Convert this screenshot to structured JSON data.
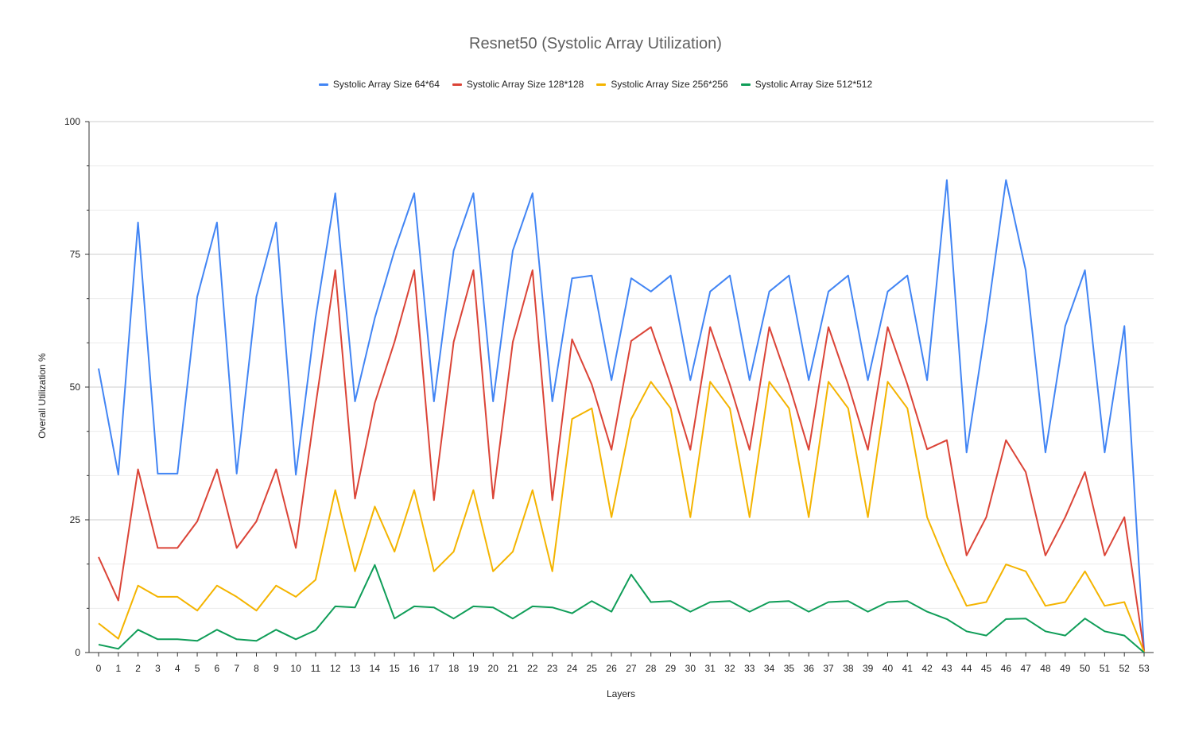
{
  "chart_data": {
    "type": "line",
    "title": "Resnet50 (Systolic Array Utilization)",
    "xlabel": "Layers",
    "ylabel": "Overall Utilization %",
    "ylim": [
      0,
      100
    ],
    "yticks": [
      0,
      25,
      50,
      75,
      100
    ],
    "grid": true,
    "legend_position": "top",
    "x": [
      0,
      1,
      2,
      3,
      4,
      5,
      6,
      7,
      8,
      9,
      10,
      11,
      12,
      13,
      14,
      15,
      16,
      17,
      18,
      19,
      20,
      21,
      22,
      23,
      24,
      25,
      26,
      27,
      28,
      29,
      30,
      31,
      32,
      33,
      34,
      35,
      36,
      37,
      38,
      39,
      40,
      41,
      42,
      43,
      44,
      45,
      46,
      47,
      48,
      49,
      50,
      51,
      52,
      53
    ],
    "series": [
      {
        "name": "Systolic Array Size 64*64",
        "color": "#4285f4",
        "values": [
          53.5,
          33.5,
          81,
          33.7,
          33.7,
          67,
          81,
          33.7,
          67,
          81,
          33.5,
          63,
          86.5,
          47.3,
          63,
          75.7,
          86.5,
          47.3,
          75.7,
          86.5,
          47.3,
          75.7,
          86.5,
          47.3,
          70.5,
          71,
          51.3,
          70.5,
          68,
          71,
          51.3,
          68,
          71,
          51.3,
          68,
          71,
          51.3,
          68,
          71,
          51.3,
          68,
          71,
          51.3,
          89,
          37.7,
          62,
          89,
          72,
          37.7,
          61.5,
          72,
          37.7,
          61.5,
          0.4
        ]
      },
      {
        "name": "Systolic Array Size 128*128",
        "color": "#db4437",
        "values": [
          18,
          9.8,
          34.5,
          19.7,
          19.7,
          24.7,
          34.5,
          19.7,
          24.7,
          34.5,
          19.7,
          46.5,
          72,
          29,
          47,
          58.5,
          72,
          28.7,
          58.5,
          72,
          29,
          58.5,
          72,
          28.7,
          59,
          50.5,
          38.2,
          58.7,
          61.3,
          50.5,
          38.2,
          61.3,
          50.5,
          38.2,
          61.3,
          50.5,
          38.2,
          61.3,
          50.5,
          38.2,
          61.3,
          50.5,
          38.3,
          40,
          18.3,
          25.5,
          40,
          34,
          18.3,
          25.5,
          34,
          18.3,
          25.5,
          0.2
        ]
      },
      {
        "name": "Systolic Array Size 256*256",
        "color": "#f4b400",
        "values": [
          5.5,
          2.6,
          12.6,
          10.5,
          10.5,
          7.9,
          12.6,
          10.5,
          7.9,
          12.6,
          10.5,
          13.7,
          30.6,
          15.3,
          27.5,
          19,
          30.6,
          15.3,
          19,
          30.6,
          15.3,
          19,
          30.6,
          15.3,
          44,
          46,
          25.5,
          44,
          51,
          46,
          25.5,
          51,
          46,
          25.5,
          51,
          46,
          25.5,
          51,
          46,
          25.5,
          51,
          46,
          25.5,
          16.5,
          8.8,
          9.5,
          16.6,
          15.3,
          8.8,
          9.5,
          15.3,
          8.8,
          9.5,
          0.1
        ]
      },
      {
        "name": "Systolic Array Size 512*512",
        "color": "#0f9d58",
        "values": [
          1.5,
          0.7,
          4.3,
          2.5,
          2.5,
          2.2,
          4.3,
          2.5,
          2.2,
          4.3,
          2.5,
          4.2,
          8.7,
          8.5,
          16.5,
          6.4,
          8.7,
          8.5,
          6.4,
          8.7,
          8.5,
          6.4,
          8.7,
          8.5,
          7.4,
          9.7,
          7.7,
          14.7,
          9.5,
          9.7,
          7.7,
          9.5,
          9.7,
          7.7,
          9.5,
          9.7,
          7.7,
          9.5,
          9.7,
          7.7,
          9.5,
          9.7,
          7.7,
          6.3,
          4,
          3.2,
          6.3,
          6.4,
          4,
          3.2,
          6.4,
          4,
          3.2,
          0
        ]
      }
    ]
  }
}
